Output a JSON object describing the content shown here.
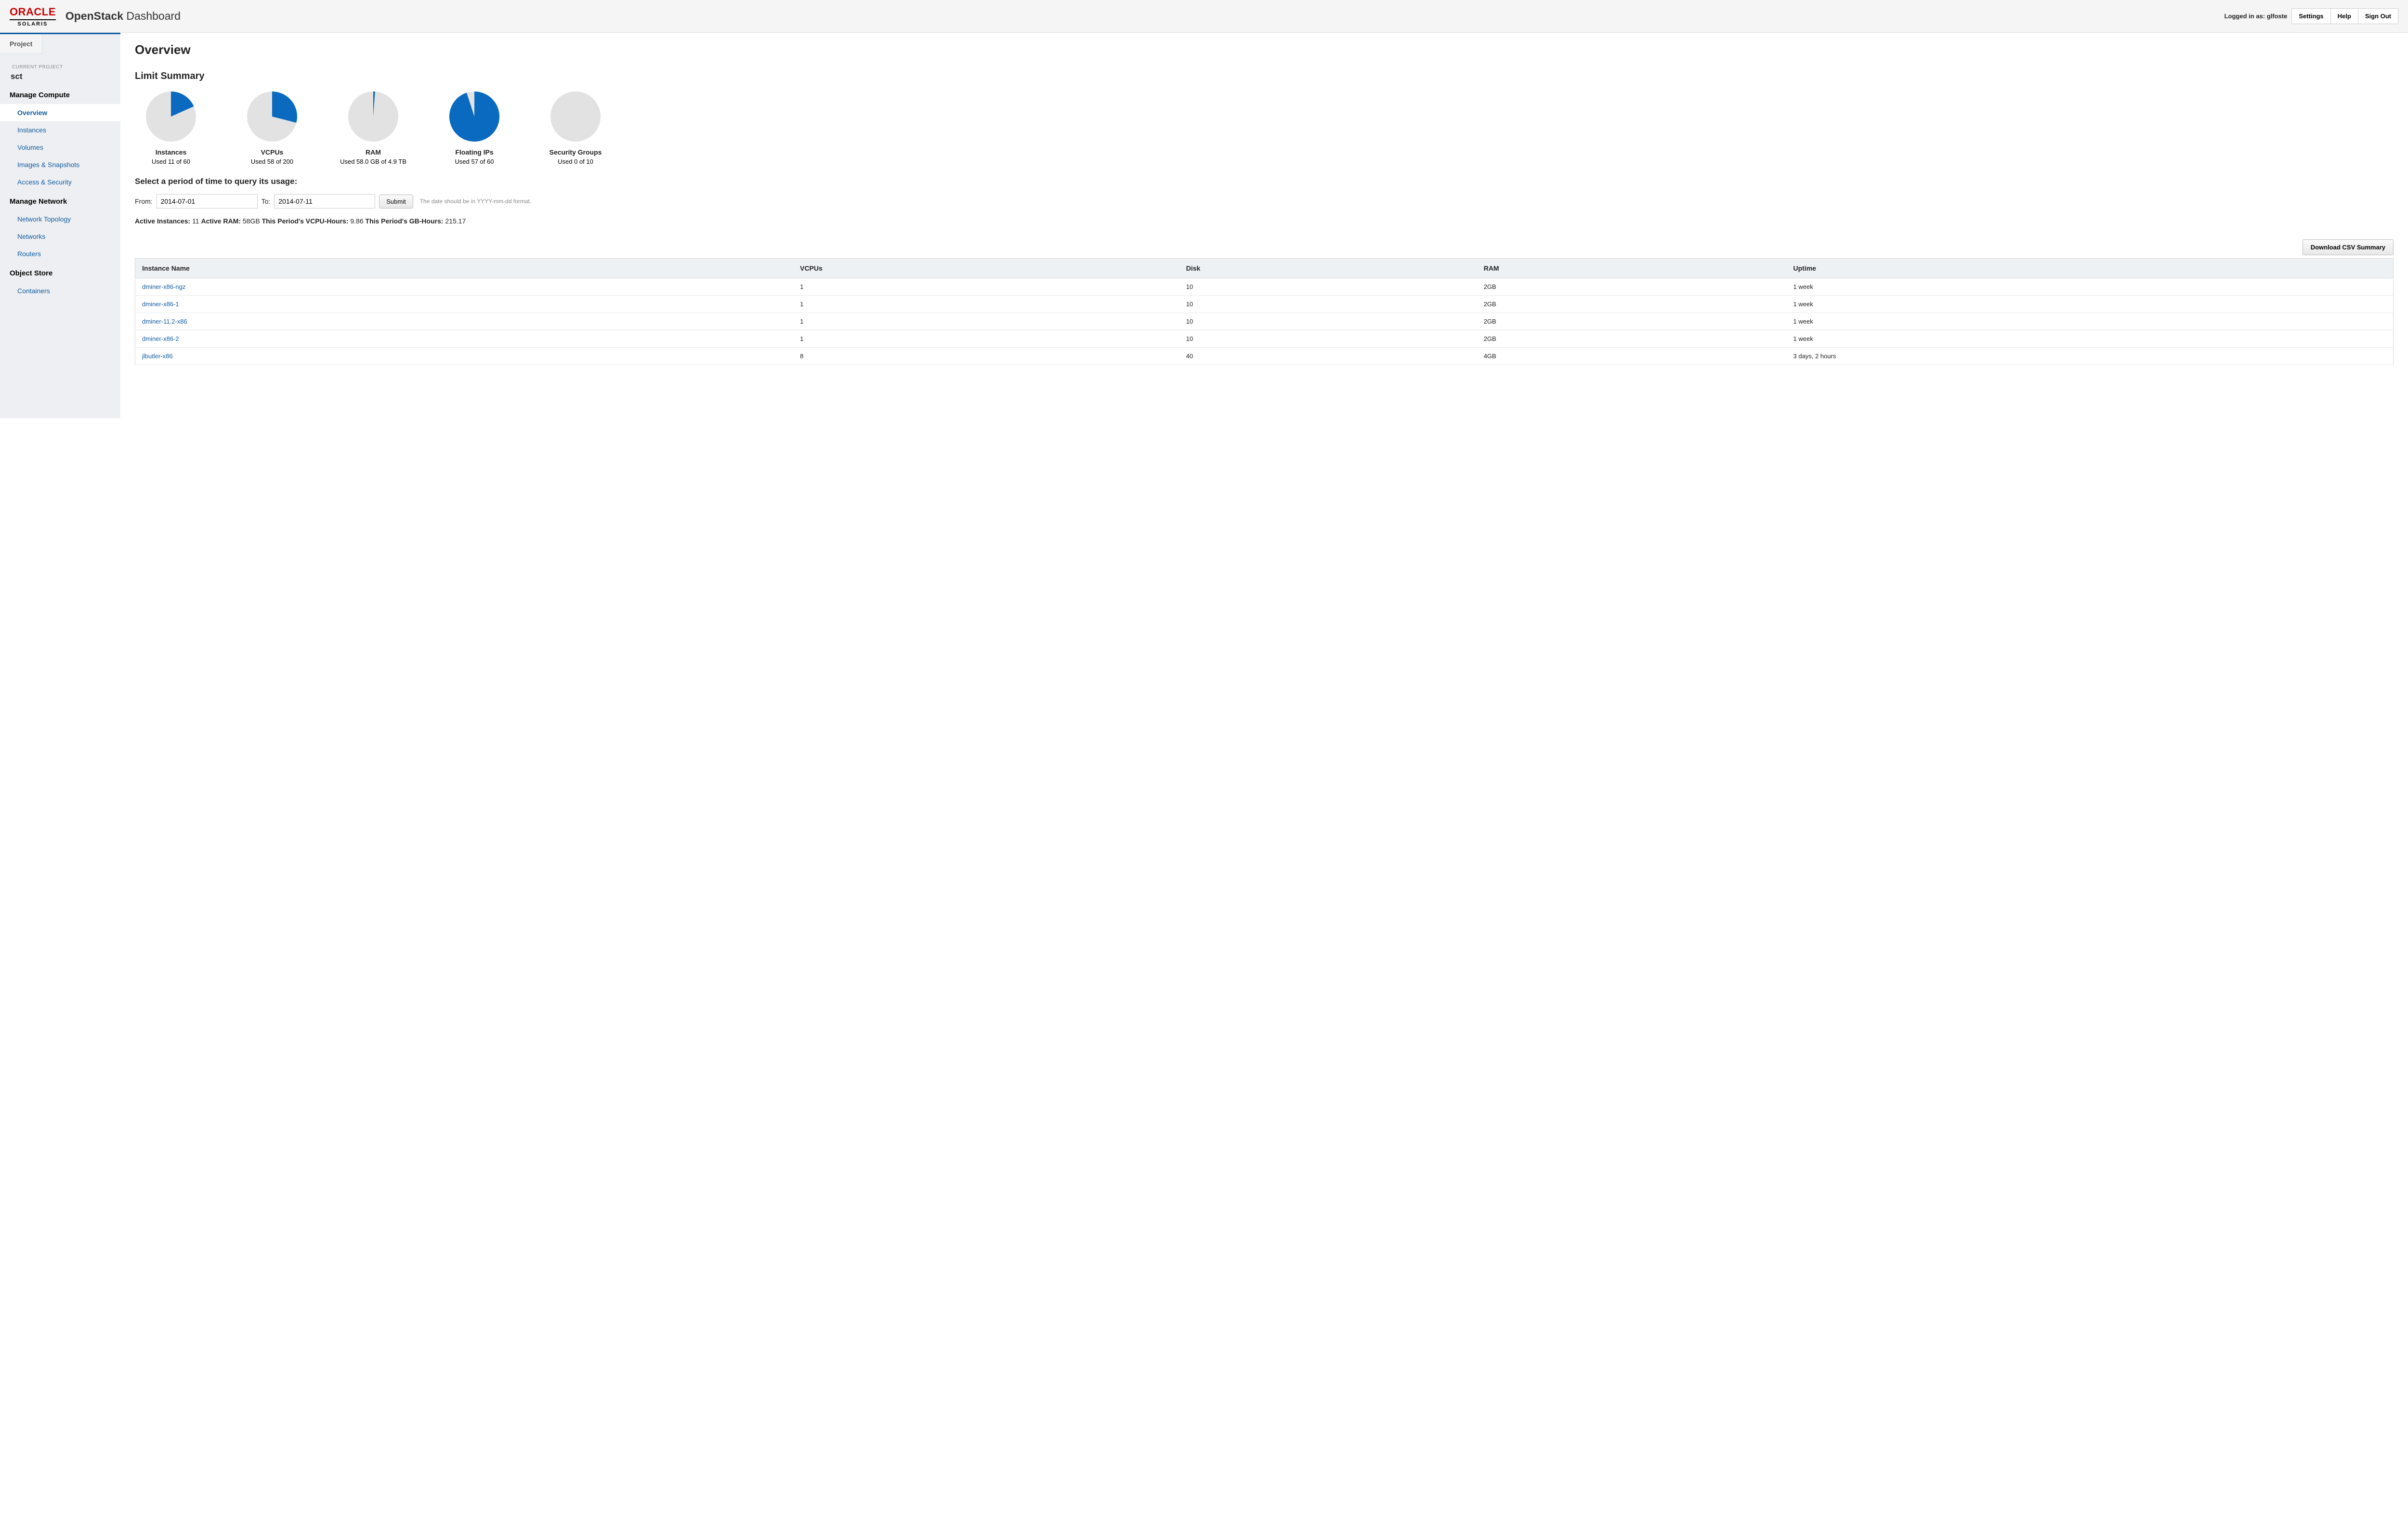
{
  "header": {
    "logo_main": "ORACLE",
    "logo_sub": "SOLARIS",
    "brand_bold": "OpenStack",
    "brand_rest": " Dashboard",
    "logged_in_prefix": "Logged in as: ",
    "logged_in_user": "glfoste",
    "settings": "Settings",
    "help": "Help",
    "signout": "Sign Out"
  },
  "sidebar": {
    "tab": "Project",
    "current_project_label": "CURRENT PROJECT",
    "current_project": "sct",
    "groups": [
      {
        "title": "Manage Compute",
        "items": [
          {
            "label": "Overview",
            "active": true
          },
          {
            "label": "Instances"
          },
          {
            "label": "Volumes"
          },
          {
            "label": "Images & Snapshots"
          },
          {
            "label": "Access & Security"
          }
        ]
      },
      {
        "title": "Manage Network",
        "items": [
          {
            "label": "Network Topology"
          },
          {
            "label": "Networks"
          },
          {
            "label": "Routers"
          }
        ]
      },
      {
        "title": "Object Store",
        "items": [
          {
            "label": "Containers"
          }
        ]
      }
    ]
  },
  "page": {
    "title": "Overview",
    "limit_heading": "Limit Summary",
    "limits": [
      {
        "title": "Instances",
        "sub": "Used 11 of 60",
        "used": 11,
        "total": 60
      },
      {
        "title": "VCPUs",
        "sub": "Used 58 of 200",
        "used": 58,
        "total": 200
      },
      {
        "title": "RAM",
        "sub": "Used 58.0 GB of 4.9 TB",
        "used": 58,
        "total": 5017.6
      },
      {
        "title": "Floating IPs",
        "sub": "Used 57 of 60",
        "used": 57,
        "total": 60
      },
      {
        "title": "Security Groups",
        "sub": "Used 0 of 10",
        "used": 0,
        "total": 10
      }
    ],
    "query_heading": "Select a period of time to query its usage:",
    "from_label": "From:",
    "to_label": "To:",
    "from_value": "2014-07-01",
    "to_value": "2014-07-11",
    "submit": "Submit",
    "hint": "The date should be in YYYY-mm-dd format.",
    "stats": {
      "active_instances_label": "Active Instances:",
      "active_instances": "11",
      "active_ram_label": "Active RAM:",
      "active_ram": "58GB",
      "vcpu_hours_label": "This Period's VCPU-Hours:",
      "vcpu_hours": "9.86",
      "gb_hours_label": "This Period's GB-Hours:",
      "gb_hours": "215.17"
    },
    "download_csv": "Download CSV Summary",
    "table": {
      "columns": [
        "Instance Name",
        "VCPUs",
        "Disk",
        "RAM",
        "Uptime"
      ],
      "rows": [
        [
          "dminer-x86-ngz",
          "1",
          "10",
          "2GB",
          "1 week"
        ],
        [
          "dminer-x86-1",
          "1",
          "10",
          "2GB",
          "1 week"
        ],
        [
          "dminer-11.2-x86",
          "1",
          "10",
          "2GB",
          "1 week"
        ],
        [
          "dminer-x86-2",
          "1",
          "10",
          "2GB",
          "1 week"
        ],
        [
          "jlbutler-x86",
          "8",
          "40",
          "4GB",
          "3 days, 2 hours"
        ]
      ]
    }
  },
  "style": {
    "pie_used_color": "#0a6ac0",
    "pie_unused_color": "#e2e2e2",
    "pie_radius": 52,
    "link_color": "#145c9e",
    "sidebar_bg": "#edeff2"
  }
}
